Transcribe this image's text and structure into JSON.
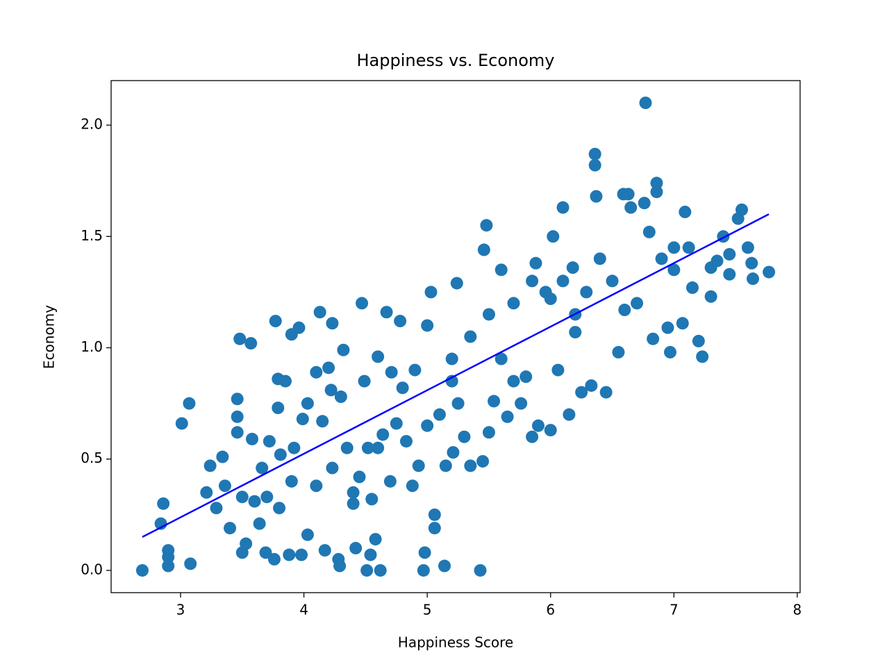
{
  "chart_data": {
    "type": "scatter",
    "title": "Happiness vs. Economy",
    "x_label": "Happiness Score",
    "y_label": "Economy",
    "xlim": [
      2.437,
      8.023
    ],
    "ylim": [
      -0.1,
      2.2
    ],
    "xticks": [
      3,
      4,
      5,
      6,
      7,
      8
    ],
    "yticks": [
      {
        "value": 0,
        "label": "0.0"
      },
      {
        "value": 0.5,
        "label": "0.5"
      },
      {
        "value": 1,
        "label": "1.0"
      },
      {
        "value": 1.5,
        "label": "1.5"
      },
      {
        "value": 2,
        "label": "2.0"
      }
    ],
    "series": [
      {
        "type": "scatter",
        "color": "#1f77b4",
        "x": [
          2.69,
          2.84,
          2.86,
          2.9,
          2.9,
          2.9,
          3.01,
          3.07,
          3.08,
          3.21,
          3.24,
          3.29,
          3.34,
          3.36,
          3.4,
          3.46,
          3.46,
          3.46,
          3.48,
          3.5,
          3.53,
          3.57,
          3.58,
          3.6,
          3.64,
          3.66,
          3.69,
          3.72,
          3.76,
          3.77,
          3.79,
          3.79,
          3.81,
          3.85,
          3.88,
          3.9,
          3.92,
          3.96,
          3.98,
          3.99,
          4.03,
          4.03,
          4.1,
          4.13,
          4.15,
          4.17,
          4.2,
          4.23,
          4.22,
          4.23,
          4.28,
          4.29,
          4.32,
          4.35,
          4.4,
          4.42,
          4.47,
          4.49,
          4.51,
          4.52,
          4.54,
          4.58,
          4.62,
          4.64,
          4.67,
          4.71,
          4.75,
          4.78,
          4.83,
          4.88,
          4.93,
          4.98,
          4.97,
          5.06,
          5.06,
          5.14,
          5.0,
          5.03,
          5.1,
          5.15,
          5.21,
          5.24,
          5.3,
          5.35,
          5.43,
          5.45,
          5.46,
          5.48,
          5.5,
          5.54,
          5.6,
          5.65,
          5.7,
          5.76,
          5.8,
          5.85,
          5.88,
          5.9,
          5.96,
          6.0,
          6.02,
          6.06,
          6.1,
          6.15,
          6.18,
          6.2,
          6.25,
          6.29,
          6.33,
          6.36,
          6.36,
          6.37,
          6.4,
          6.45,
          6.5,
          6.55,
          6.59,
          6.63,
          6.65,
          6.7,
          6.76,
          6.77,
          6.8,
          6.83,
          6.86,
          6.86,
          6.9,
          6.95,
          6.97,
          7.0,
          7.07,
          7.09,
          7.12,
          7.15,
          7.2,
          7.23,
          7.3,
          7.35,
          7.4,
          7.45,
          7.52,
          7.55,
          7.6,
          7.63,
          7.77,
          7.64,
          4.45,
          4.6,
          4.8,
          5.2,
          5.35,
          5.5,
          5.7,
          5.85,
          6.0,
          6.1,
          5.25,
          4.9,
          4.6,
          4.3,
          3.7,
          3.9,
          4.1,
          4.4,
          3.5,
          3.8,
          4.55,
          4.7,
          5.0,
          5.2,
          5.6,
          6.2,
          6.6,
          7.0,
          7.3,
          7.45
        ],
        "values": [
          0.0,
          0.21,
          0.3,
          0.09,
          0.06,
          0.02,
          0.66,
          0.75,
          0.03,
          0.35,
          0.47,
          0.28,
          0.51,
          0.38,
          0.19,
          0.77,
          0.69,
          0.62,
          1.04,
          0.08,
          0.12,
          1.02,
          0.59,
          0.31,
          0.21,
          0.46,
          0.08,
          0.58,
          0.05,
          1.12,
          0.86,
          0.73,
          0.52,
          0.85,
          0.07,
          1.06,
          0.55,
          1.09,
          0.07,
          0.68,
          0.75,
          0.16,
          0.89,
          1.16,
          0.67,
          0.09,
          0.91,
          0.46,
          0.81,
          1.11,
          0.05,
          0.02,
          0.99,
          0.55,
          0.35,
          0.1,
          1.2,
          0.85,
          0.0,
          0.55,
          0.07,
          0.14,
          0.0,
          0.61,
          1.16,
          0.89,
          0.66,
          1.12,
          0.58,
          0.38,
          0.47,
          0.08,
          0.0,
          0.25,
          0.19,
          0.02,
          1.1,
          1.25,
          0.7,
          0.47,
          0.53,
          1.29,
          0.6,
          0.47,
          0.0,
          0.49,
          1.44,
          1.55,
          0.62,
          0.76,
          1.35,
          0.69,
          0.85,
          0.75,
          0.87,
          0.6,
          1.38,
          0.65,
          1.25,
          0.63,
          1.5,
          0.9,
          1.63,
          0.7,
          1.36,
          1.07,
          0.8,
          1.25,
          0.83,
          1.87,
          1.82,
          1.68,
          1.4,
          0.8,
          1.3,
          0.98,
          1.69,
          1.69,
          1.63,
          1.2,
          1.65,
          2.1,
          1.52,
          1.04,
          1.74,
          1.7,
          1.4,
          1.09,
          0.98,
          1.45,
          1.11,
          1.61,
          1.45,
          1.27,
          1.03,
          0.96,
          1.23,
          1.39,
          1.5,
          1.33,
          1.58,
          1.62,
          1.45,
          1.38,
          1.34,
          1.31,
          0.42,
          0.55,
          0.82,
          0.95,
          1.05,
          1.15,
          1.2,
          1.3,
          1.22,
          1.3,
          0.75,
          0.9,
          0.96,
          0.78,
          0.33,
          0.4,
          0.38,
          0.3,
          0.33,
          0.28,
          0.32,
          0.4,
          0.65,
          0.85,
          0.95,
          1.15,
          1.17,
          1.35,
          1.36,
          1.42
        ]
      },
      {
        "type": "line",
        "color": "#0000ff",
        "x": [
          2.69,
          7.77
        ],
        "values": [
          0.15,
          1.6
        ]
      }
    ]
  }
}
